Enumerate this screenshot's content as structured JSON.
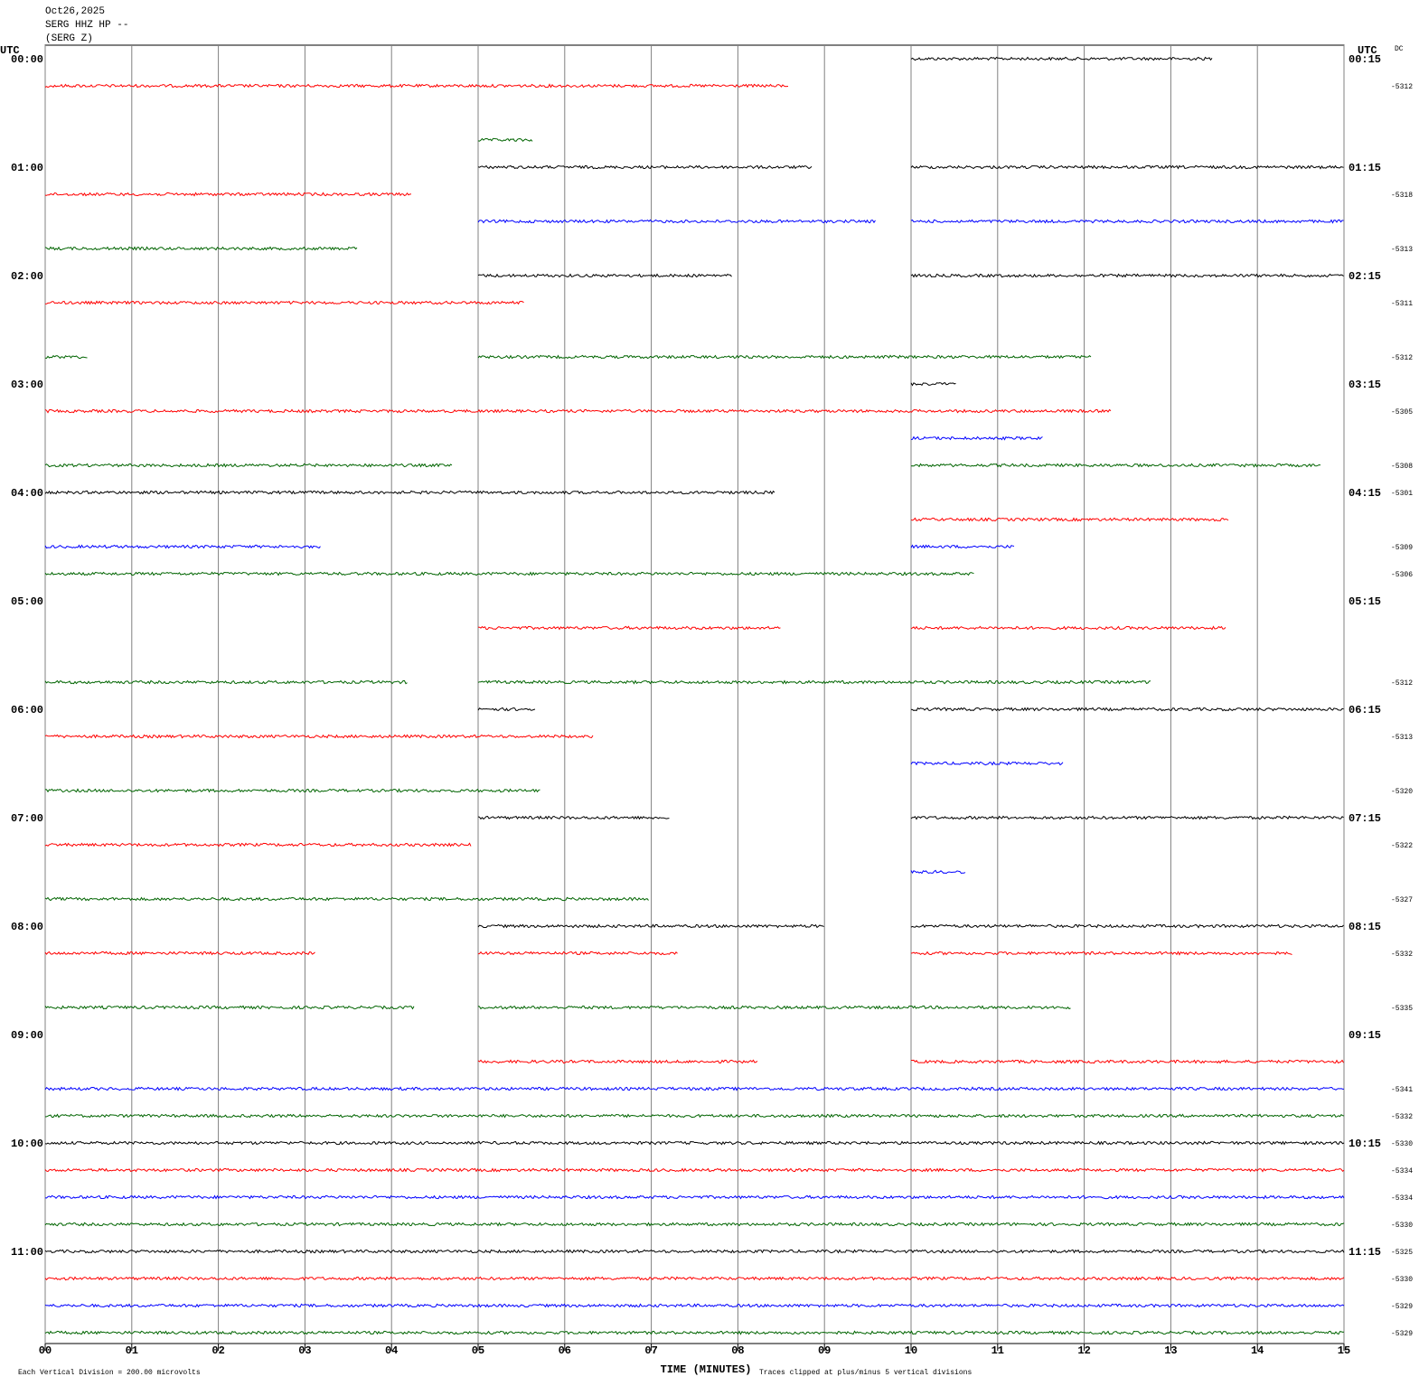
{
  "chart_data": {
    "type": "helicorder",
    "title_lines": [
      "Oct26,2025",
      "SERG HHZ HP --",
      "(SERG Z)"
    ],
    "left_axis_title": "UTC",
    "right_axis_title": "UTC",
    "dc_title": "DC",
    "xlabel": "TIME (MINUTES)",
    "footer_left": "Each Vertical Division =  200.00 microvolts",
    "footer_right": "Traces clipped at plus/minus 5 vertical divisions",
    "xlim": [
      0,
      15
    ],
    "xticks": [
      {
        "value": 0,
        "label": "00"
      },
      {
        "value": 1,
        "label": "01"
      },
      {
        "value": 2,
        "label": "02"
      },
      {
        "value": 3,
        "label": "03"
      },
      {
        "value": 4,
        "label": "04"
      },
      {
        "value": 5,
        "label": "05"
      },
      {
        "value": 6,
        "label": "06"
      },
      {
        "value": 7,
        "label": "07"
      },
      {
        "value": 8,
        "label": "08"
      },
      {
        "value": 9,
        "label": "09"
      },
      10,
      11,
      12,
      13,
      14,
      15
    ],
    "grid": true,
    "trace_colors": [
      "#000000",
      "#ff0000",
      "#0000ff",
      "#006400"
    ],
    "left_labels": [
      "00:00",
      "01:00",
      "02:00",
      "03:00",
      "04:00",
      "05:00",
      "06:00",
      "07:00",
      "08:00",
      "09:00",
      "10:00",
      "11:00"
    ],
    "right_labels": [
      "00:15",
      "01:15",
      "02:15",
      "03:15",
      "04:15",
      "05:15",
      "06:15",
      "07:15",
      "08:15",
      "09:15",
      "10:15",
      "11:15"
    ],
    "rows": [
      {
        "segments": [
          [
            10,
            13.48
          ]
        ]
      },
      {
        "segments": [
          [
            0,
            8.59
          ]
        ],
        "dc": -5312
      },
      {
        "segments": []
      },
      {
        "segments": [
          [
            5,
            5.63
          ]
        ]
      },
      {
        "segments": [
          [
            5,
            8.86
          ],
          [
            10,
            15
          ]
        ]
      },
      {
        "segments": [
          [
            0,
            4.23
          ]
        ],
        "dc": -5318
      },
      {
        "segments": [
          [
            5,
            9.6
          ],
          [
            10,
            15
          ]
        ]
      },
      {
        "segments": [
          [
            0,
            3.61
          ]
        ],
        "dc": -5313
      },
      {
        "segments": [
          [
            5,
            7.94
          ],
          [
            10,
            15
          ]
        ]
      },
      {
        "segments": [
          [
            0,
            5.53
          ]
        ],
        "dc": -5311
      },
      {
        "segments": []
      },
      {
        "segments": [
          [
            0,
            0.5
          ],
          [
            5,
            12.09
          ]
        ],
        "dc": -5312
      },
      {
        "segments": [
          [
            10,
            10.53
          ]
        ]
      },
      {
        "segments": [
          [
            0,
            12.32
          ]
        ],
        "dc": -5305
      },
      {
        "segments": [
          [
            10,
            11.53
          ]
        ]
      },
      {
        "segments": [
          [
            0,
            4.7
          ],
          [
            10,
            14.74
          ]
        ],
        "dc": -5308
      },
      {
        "segments": [
          [
            0,
            8.43
          ]
        ],
        "dc": -5301
      },
      {
        "segments": [
          [
            10,
            13.67
          ]
        ]
      },
      {
        "segments": [
          [
            0,
            3.18
          ],
          [
            10,
            11.2
          ]
        ],
        "dc": -5309
      },
      {
        "segments": [
          [
            0,
            10.73
          ]
        ],
        "dc": -5306
      },
      {
        "segments": []
      },
      {
        "segments": [
          [
            5,
            8.5
          ],
          [
            10,
            13.64
          ]
        ]
      },
      {
        "segments": []
      },
      {
        "segments": [
          [
            0,
            4.19
          ],
          [
            5,
            12.78
          ]
        ],
        "dc": -5312
      },
      {
        "segments": [
          [
            5,
            5.66
          ],
          [
            10,
            15
          ]
        ]
      },
      {
        "segments": [
          [
            0,
            6.34
          ]
        ],
        "dc": -5313
      },
      {
        "segments": [
          [
            10,
            11.76
          ]
        ]
      },
      {
        "segments": [
          [
            0,
            5.73
          ]
        ],
        "dc": -5320
      },
      {
        "segments": [
          [
            5,
            7.21
          ],
          [
            10,
            15
          ]
        ]
      },
      {
        "segments": [
          [
            0,
            4.93
          ]
        ],
        "dc": -5322
      },
      {
        "segments": [
          [
            10,
            10.64
          ]
        ]
      },
      {
        "segments": [
          [
            0,
            6.97
          ]
        ],
        "dc": -5327
      },
      {
        "segments": [
          [
            5,
            9.0
          ],
          [
            10,
            15
          ]
        ]
      },
      {
        "segments": [
          [
            0,
            3.13
          ],
          [
            5,
            7.31
          ],
          [
            10,
            14.4
          ]
        ],
        "dc": -5332
      },
      {
        "segments": []
      },
      {
        "segments": [
          [
            0,
            4.27
          ],
          [
            5,
            11.85
          ]
        ],
        "dc": -5335
      },
      {
        "segments": []
      },
      {
        "segments": [
          [
            5,
            8.23
          ],
          [
            10,
            15
          ]
        ]
      },
      {
        "segments": [
          [
            0,
            15
          ]
        ],
        "dc": -5341
      },
      {
        "segments": [
          [
            0,
            15
          ]
        ],
        "dc": -5332
      },
      {
        "segments": [
          [
            0,
            15
          ]
        ],
        "dc": -5330
      },
      {
        "segments": [
          [
            0,
            15
          ]
        ],
        "dc": -5334
      },
      {
        "segments": [
          [
            0,
            15
          ]
        ],
        "dc": -5334
      },
      {
        "segments": [
          [
            0,
            15
          ]
        ],
        "dc": -5330
      },
      {
        "segments": [
          [
            0,
            15
          ]
        ],
        "dc": -5325
      },
      {
        "segments": [
          [
            0,
            15
          ]
        ],
        "dc": -5330
      },
      {
        "segments": [
          [
            0,
            15
          ]
        ],
        "dc": -5329
      },
      {
        "segments": [
          [
            0,
            15
          ]
        ],
        "dc": -5329
      }
    ]
  }
}
